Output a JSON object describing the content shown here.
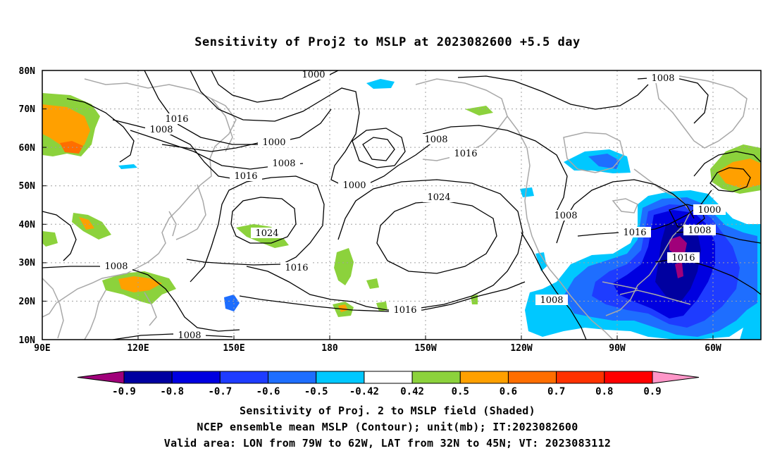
{
  "title": "Sensitivity of Proj2 to MSLP at 2023082600 +5.5 day",
  "map": {
    "lon_labels": [
      "90E",
      "120E",
      "150E",
      "180",
      "150W",
      "120W",
      "90W",
      "60W"
    ],
    "lat_labels": [
      "80N",
      "70N",
      "60N",
      "50N",
      "40N",
      "30N",
      "20N",
      "10N"
    ],
    "contour_labels": [
      {
        "text": "1000"
      },
      {
        "text": "1008"
      },
      {
        "text": "1016"
      },
      {
        "text": "1008"
      },
      {
        "text": "1000"
      },
      {
        "text": "1008"
      },
      {
        "text": "1016"
      },
      {
        "text": "1000"
      },
      {
        "text": "1008"
      },
      {
        "text": "1016"
      },
      {
        "text": "1024"
      },
      {
        "text": "1024"
      },
      {
        "text": "1016"
      },
      {
        "text": "1008"
      },
      {
        "text": "1016"
      },
      {
        "text": "1008"
      },
      {
        "text": "1008"
      },
      {
        "text": "1008"
      },
      {
        "text": "1016"
      },
      {
        "text": "1000"
      },
      {
        "text": "1008"
      },
      {
        "text": "1016"
      }
    ]
  },
  "colorbar": {
    "labels": [
      "-0.9",
      "-0.8",
      "-0.7",
      "-0.6",
      "-0.5",
      "-0.42",
      "0.42",
      "0.5",
      "0.6",
      "0.7",
      "0.8",
      "0.9"
    ],
    "colors": [
      "#a0007a",
      "#0000a0",
      "#0000e0",
      "#1e3cff",
      "#1e6eff",
      "#00c8ff",
      "#ffffff",
      "#8cd23c",
      "#ffa000",
      "#ff6e00",
      "#ff3200",
      "#ff0000",
      "#ff96c8"
    ]
  },
  "footer": {
    "line1": "Sensitivity of Proj. 2 to MSLP field (Shaded)",
    "line2": "NCEP ensemble mean MSLP (Contour); unit(mb); IT:2023082600",
    "line3": "Valid area: LON from 79W to 62W, LAT from 32N to 45N; VT: 2023083112"
  }
}
